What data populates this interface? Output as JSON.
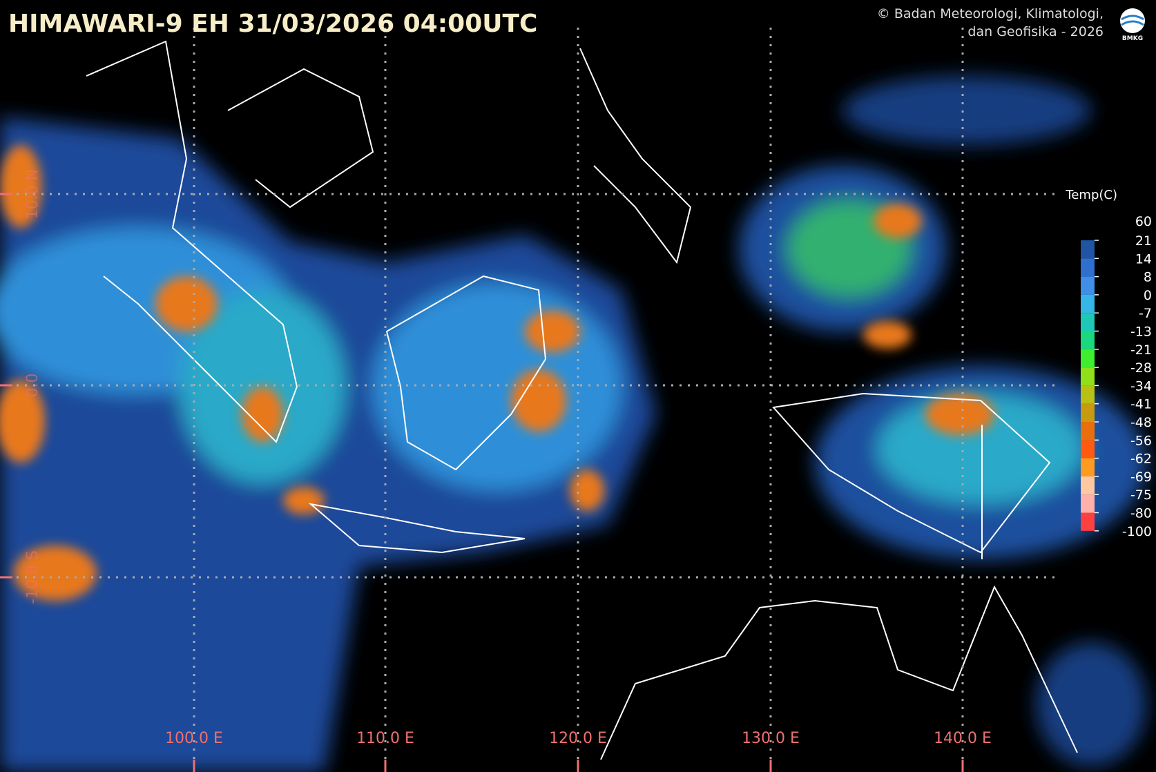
{
  "header": {
    "title": "HIMAWARI-9 EH  31/03/2026  04:00UTC",
    "credit_line1": "© Badan Meteorologi, Klimatologi,",
    "credit_line2": "dan Geofisika -  2026",
    "logo_text": "BMKG"
  },
  "map": {
    "longitude_labels": [
      "100.0 E",
      "110.0 E",
      "120.0 E",
      "130.0 E",
      "140.0 E"
    ],
    "latitude_labels": [
      "10.0 N",
      "0.0",
      "-10.0 S"
    ]
  },
  "legend": {
    "title": "Temp(C)",
    "ticks": [
      60,
      21,
      14,
      8,
      0,
      -7,
      -13,
      -21,
      -28,
      -34,
      -41,
      -48,
      -56,
      -62,
      -69,
      -75,
      -80,
      -100
    ],
    "colors": [
      "#0d3a6e",
      "#1f55a3",
      "#2f6fd0",
      "#3f8fe8",
      "#35b6e6",
      "#1fc7b6",
      "#19d87e",
      "#3fef2f",
      "#8fe019",
      "#b8c016",
      "#c89a10",
      "#e86f0c",
      "#ff5a10",
      "#ff9a20",
      "#ffc8a0",
      "#ffb0a8",
      "#ff4040"
    ]
  }
}
